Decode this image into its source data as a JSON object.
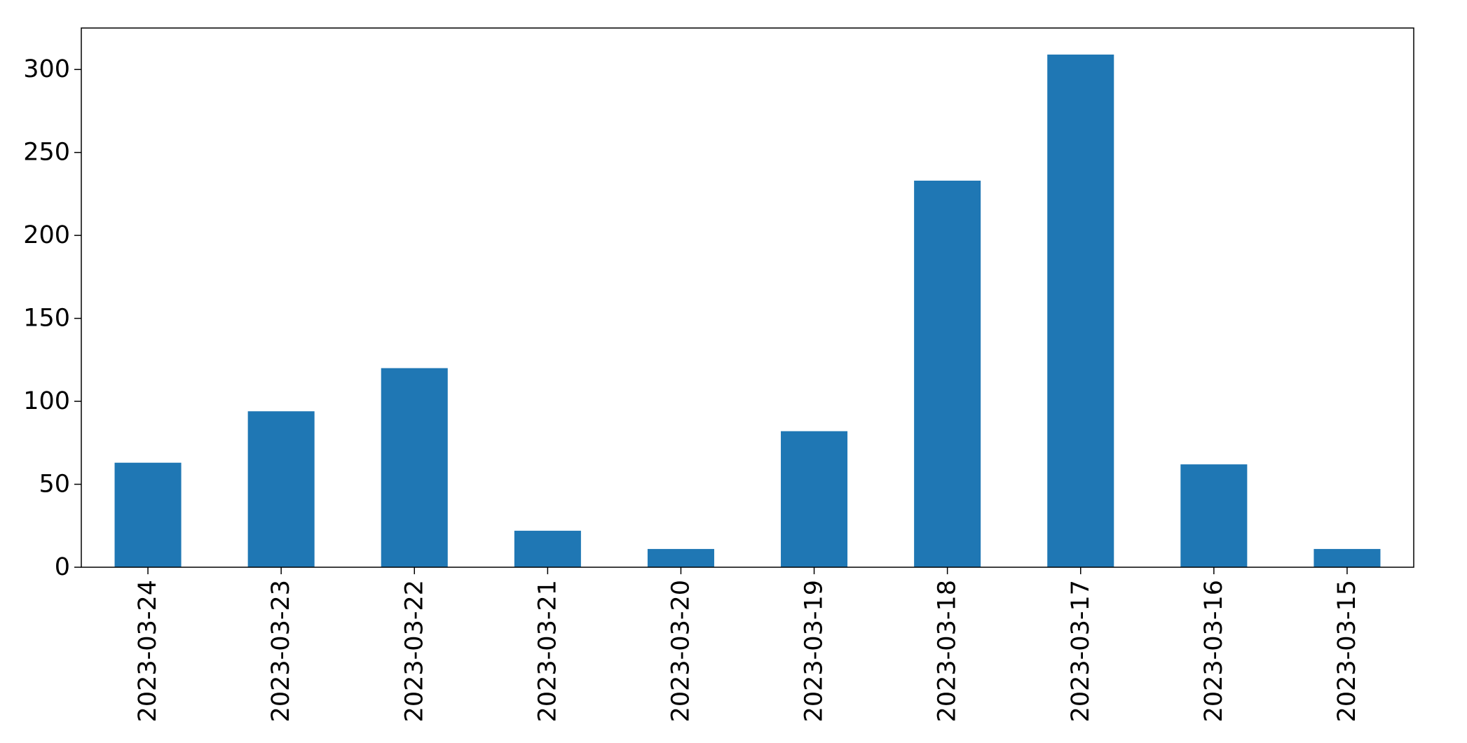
{
  "chart_data": {
    "type": "bar",
    "categories": [
      "2023-03-24",
      "2023-03-23",
      "2023-03-22",
      "2023-03-21",
      "2023-03-20",
      "2023-03-19",
      "2023-03-18",
      "2023-03-17",
      "2023-03-16",
      "2023-03-15"
    ],
    "values": [
      63,
      94,
      120,
      22,
      11,
      82,
      233,
      309,
      62,
      11
    ],
    "title": "",
    "xlabel": "",
    "ylabel": "",
    "ylim": [
      0,
      325
    ],
    "yticks": [
      0,
      50,
      100,
      150,
      200,
      250,
      300
    ],
    "grid": false,
    "legend": "none",
    "bar_color": "#1f77b4"
  }
}
